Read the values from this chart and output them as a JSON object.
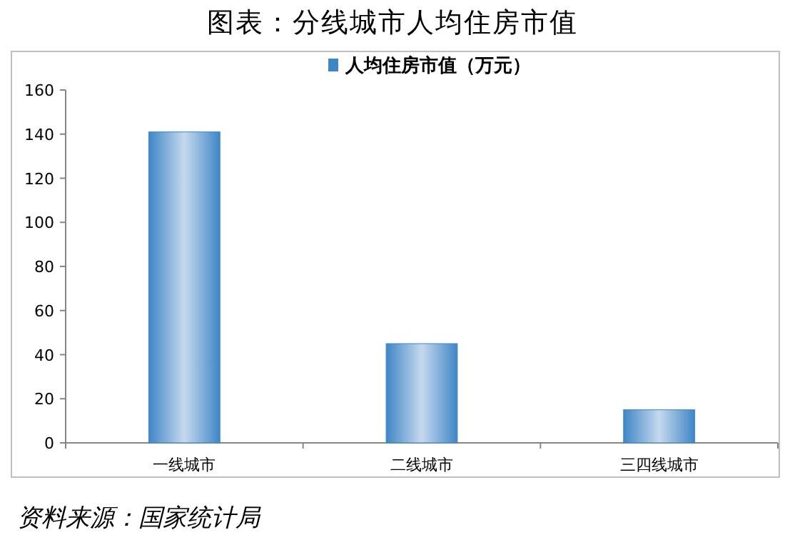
{
  "chart_data": {
    "type": "bar",
    "title": "图表：分线城市人均住房市值",
    "categories": [
      "一线城市",
      "二线城市",
      "三四线城市"
    ],
    "series": [
      {
        "name": "人均住房市值（万元）",
        "color": "#3f86c6",
        "values": [
          141,
          45,
          15
        ]
      }
    ],
    "ylim": [
      0,
      160
    ],
    "yticks": [
      0,
      20,
      40,
      60,
      80,
      100,
      120,
      140,
      160
    ],
    "legend": "top",
    "annotations": [
      "资料来源：国家统计局"
    ]
  }
}
